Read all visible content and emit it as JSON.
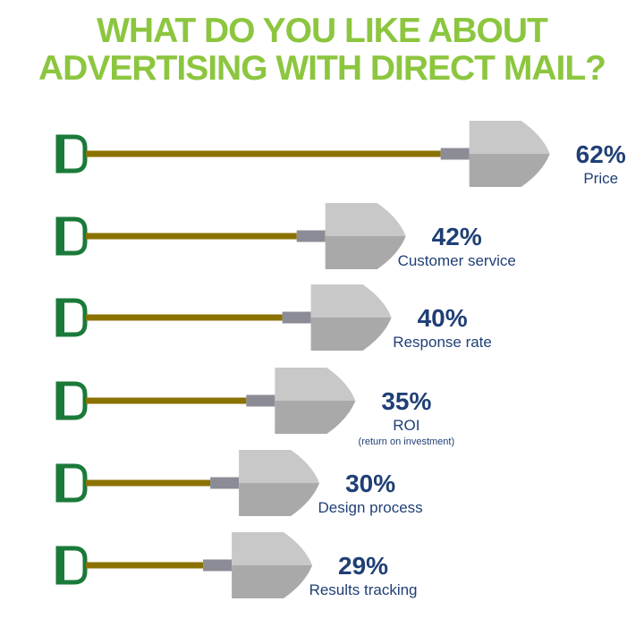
{
  "chart_data": {
    "type": "bar",
    "title_lines": [
      "WHAT DO YOU LIKE ABOUT",
      "ADVERTISING WITH DIRECT MAIL?"
    ],
    "categories": [
      "Price",
      "Customer service",
      "Response rate",
      "ROI",
      "Design process",
      "Results tracking"
    ],
    "category_notes": [
      "",
      "",
      "",
      "(return on investment)",
      "",
      ""
    ],
    "values": [
      62,
      42,
      40,
      35,
      30,
      29
    ],
    "value_labels": [
      "62%",
      "42%",
      "40%",
      "35%",
      "30%",
      "29%"
    ],
    "unit": "%",
    "colors": {
      "title": "#8cc63f",
      "handle": "#1a7a3a",
      "shaft": "#8a7200",
      "collar": "#8c8c96",
      "blade_light": "#c8c8c8",
      "blade_dark": "#a9a9a9",
      "text": "#1f3f75"
    }
  }
}
